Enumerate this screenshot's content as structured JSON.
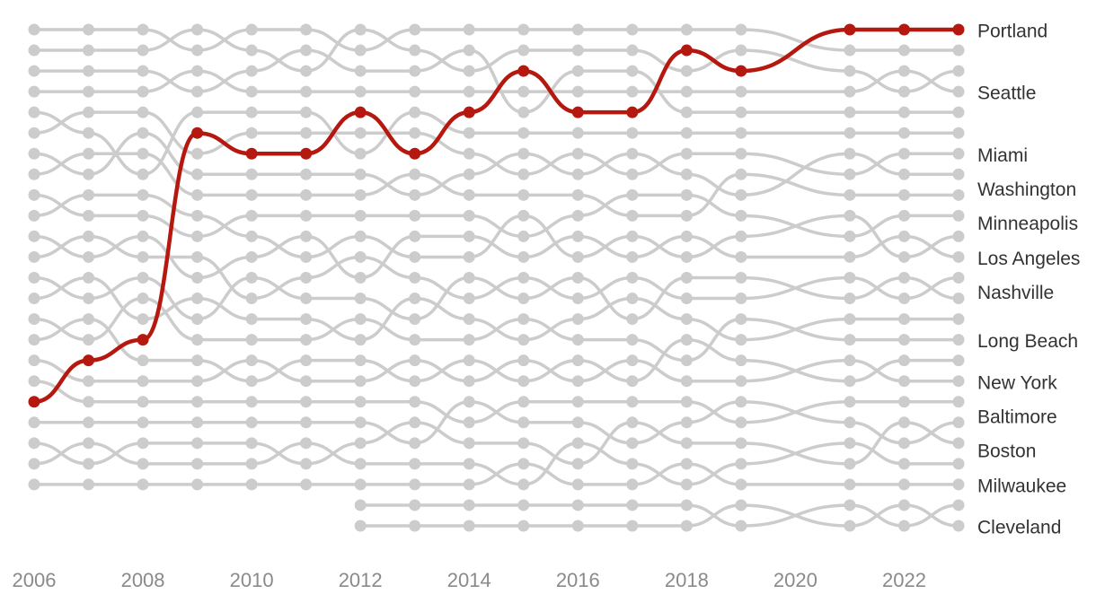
{
  "chart_data": {
    "type": "bump",
    "x": [
      2006,
      2007,
      2008,
      2009,
      2010,
      2011,
      2012,
      2013,
      2014,
      2015,
      2016,
      2017,
      2018,
      2019,
      2021,
      2022,
      2023
    ],
    "xlim": [
      2006,
      2023
    ],
    "xticks": [
      2006,
      2008,
      2010,
      2012,
      2014,
      2016,
      2018,
      2020,
      2022
    ],
    "ylim": [
      1,
      25
    ],
    "series": [
      {
        "color": "#cccccc",
        "values": [
          1,
          1,
          1,
          2,
          1,
          1,
          2,
          1,
          1,
          1,
          1,
          1,
          1,
          1,
          2,
          2,
          2
        ]
      },
      {
        "color": "#cccccc",
        "values": [
          2,
          2,
          2,
          1,
          2,
          3,
          1,
          2,
          3,
          2,
          2,
          2,
          3,
          2,
          3,
          4,
          3
        ]
      },
      {
        "name": "Seattle",
        "color": "#cccccc",
        "values": [
          4,
          4,
          4,
          3,
          4,
          4,
          4,
          4,
          4,
          4,
          4,
          4,
          4,
          4,
          4,
          3,
          4
        ]
      },
      {
        "color": "#cccccc",
        "values": [
          3,
          3,
          3,
          4,
          3,
          2,
          3,
          3,
          2,
          5,
          3,
          3,
          5,
          5,
          5,
          5,
          5
        ]
      },
      {
        "color": "#cccccc",
        "values": [
          5,
          6,
          8,
          5,
          5,
          5,
          7,
          5,
          6,
          6,
          6,
          6,
          6,
          6,
          6,
          6,
          6
        ]
      },
      {
        "name": "Miami",
        "color": "#cccccc",
        "values": [
          6,
          5,
          5,
          7,
          6,
          6,
          6,
          6,
          7,
          8,
          7,
          8,
          7,
          7,
          8,
          7,
          7
        ]
      },
      {
        "name": "Washington",
        "color": "#cccccc",
        "values": [
          7,
          8,
          6,
          8,
          8,
          8,
          8,
          9,
          8,
          7,
          8,
          7,
          8,
          9,
          7,
          8,
          8
        ]
      },
      {
        "color": "#cccccc",
        "values": [
          8,
          7,
          7,
          9,
          9,
          9,
          9,
          8,
          9,
          9,
          9,
          10,
          10,
          8,
          9,
          9,
          9
        ]
      },
      {
        "name": "Minneapolis",
        "color": "#cccccc",
        "values": [
          9,
          10,
          10,
          11,
          10,
          10,
          10,
          10,
          10,
          11,
          10,
          9,
          9,
          10,
          11,
          10,
          10
        ]
      },
      {
        "color": "#cccccc",
        "values": [
          10,
          9,
          9,
          10,
          11,
          12,
          11,
          12,
          12,
          10,
          12,
          11,
          12,
          11,
          10,
          12,
          11
        ]
      },
      {
        "name": "Los Angeles",
        "color": "#cccccc",
        "values": [
          11,
          12,
          11,
          13,
          12,
          11,
          13,
          11,
          11,
          12,
          11,
          12,
          11,
          12,
          12,
          11,
          12
        ]
      },
      {
        "name": "Nashville",
        "color": "#cccccc",
        "values": [
          12,
          11,
          12,
          12,
          14,
          13,
          12,
          13,
          14,
          13,
          14,
          13,
          14,
          14,
          13,
          14,
          13
        ]
      },
      {
        "color": "#cccccc",
        "values": [
          13,
          14,
          13,
          15,
          13,
          14,
          14,
          15,
          13,
          14,
          13,
          15,
          13,
          13,
          14,
          13,
          14
        ]
      },
      {
        "color": "#cccccc",
        "values": [
          14,
          13,
          15,
          14,
          15,
          15,
          16,
          14,
          15,
          16,
          15,
          14,
          15,
          16,
          15,
          15,
          15
        ]
      },
      {
        "name": "Long Beach",
        "color": "#cccccc",
        "values": [
          15,
          16,
          14,
          16,
          16,
          16,
          15,
          16,
          16,
          15,
          16,
          16,
          17,
          15,
          16,
          16,
          16
        ]
      },
      {
        "color": "#cccccc",
        "values": [
          16,
          15,
          17,
          17,
          18,
          17,
          17,
          18,
          17,
          18,
          17,
          18,
          16,
          17,
          18,
          17,
          17
        ]
      },
      {
        "name": "New York",
        "color": "#cccccc",
        "values": [
          17,
          18,
          18,
          18,
          17,
          18,
          18,
          17,
          18,
          17,
          18,
          17,
          18,
          18,
          17,
          18,
          18
        ]
      },
      {
        "name": "Baltimore",
        "color": "#cccccc",
        "values": [
          18,
          19,
          19,
          19,
          19,
          19,
          19,
          19,
          20,
          19,
          19,
          19,
          19,
          20,
          19,
          19,
          19
        ]
      },
      {
        "color": "#cccccc",
        "values": [
          20,
          20,
          20,
          20,
          20,
          20,
          20,
          21,
          19,
          20,
          20,
          21,
          20,
          19,
          20,
          21,
          20
        ]
      },
      {
        "name": "Boston",
        "color": "#cccccc",
        "values": [
          21,
          22,
          21,
          21,
          21,
          22,
          21,
          20,
          21,
          21,
          22,
          20,
          21,
          21,
          22,
          20,
          21
        ]
      },
      {
        "color": "#cccccc",
        "values": [
          22,
          21,
          22,
          22,
          22,
          21,
          22,
          22,
          22,
          23,
          21,
          22,
          23,
          22,
          21,
          22,
          22
        ]
      },
      {
        "name": "Milwaukee",
        "color": "#cccccc",
        "values": [
          23,
          23,
          23,
          23,
          23,
          23,
          23,
          23,
          23,
          22,
          23,
          23,
          22,
          23,
          23,
          23,
          23
        ]
      },
      {
        "color": "#cccccc",
        "values": [
          null,
          null,
          null,
          null,
          null,
          null,
          24,
          24,
          24,
          24,
          24,
          24,
          24,
          25,
          24,
          25,
          24
        ]
      },
      {
        "name": "Cleveland",
        "color": "#cccccc",
        "values": [
          null,
          null,
          null,
          null,
          null,
          null,
          25,
          25,
          25,
          25,
          25,
          25,
          25,
          24,
          25,
          24,
          25
        ]
      },
      {
        "name": "Portland",
        "color": "#b5180f",
        "values": [
          19,
          17,
          16,
          6,
          7,
          7,
          5,
          7,
          5,
          3,
          5,
          5,
          2,
          3,
          1,
          1,
          1
        ]
      }
    ]
  }
}
